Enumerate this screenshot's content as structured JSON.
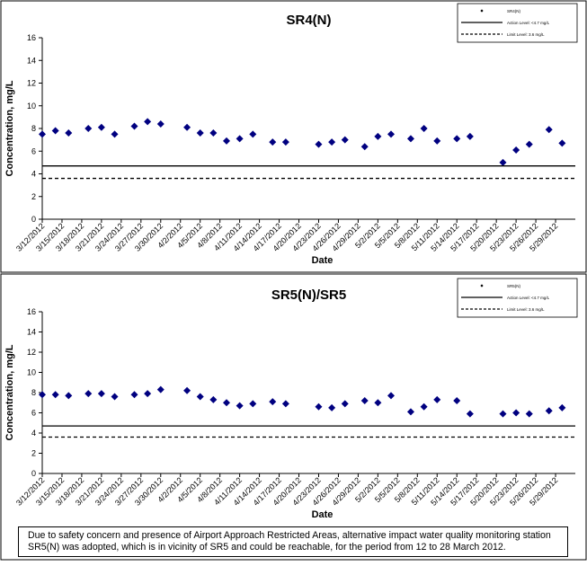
{
  "chart_data": [
    {
      "type": "scatter",
      "title": "SR4(N)",
      "xlabel": "Date",
      "ylabel": "Concentration, mg/L",
      "ylim": [
        0,
        16
      ],
      "yticks": [
        "0",
        "2",
        "4",
        "6",
        "8",
        "10",
        "12",
        "14",
        "16"
      ],
      "xticks": [
        "3/12/2012",
        "3/15/2012",
        "3/18/2012",
        "3/21/2012",
        "3/24/2012",
        "3/27/2012",
        "3/30/2012",
        "4/2/2012",
        "4/5/2012",
        "4/8/2012",
        "4/11/2012",
        "4/14/2012",
        "4/17/2012",
        "4/20/2012",
        "4/23/2012",
        "4/26/2012",
        "4/29/2012",
        "5/2/2012",
        "5/5/2012",
        "5/8/2012",
        "5/11/2012",
        "5/14/2012",
        "5/17/2012",
        "5/20/2012",
        "5/23/2012",
        "5/26/2012",
        "5/29/2012"
      ],
      "grid": false,
      "legend_position": "top-right",
      "series": [
        {
          "name": "SR4(N)",
          "marker": "diamond",
          "color": "#000080",
          "points": [
            {
              "x": "3/12/2012",
              "y": 7.5
            },
            {
              "x": "3/14/2012",
              "y": 7.8
            },
            {
              "x": "3/16/2012",
              "y": 7.6
            },
            {
              "x": "3/19/2012",
              "y": 8.0
            },
            {
              "x": "3/21/2012",
              "y": 8.1
            },
            {
              "x": "3/23/2012",
              "y": 7.5
            },
            {
              "x": "3/26/2012",
              "y": 8.2
            },
            {
              "x": "3/28/2012",
              "y": 8.6
            },
            {
              "x": "3/30/2012",
              "y": 8.4
            },
            {
              "x": "4/3/2012",
              "y": 8.1
            },
            {
              "x": "4/5/2012",
              "y": 7.6
            },
            {
              "x": "4/7/2012",
              "y": 7.6
            },
            {
              "x": "4/9/2012",
              "y": 6.9
            },
            {
              "x": "4/11/2012",
              "y": 7.1
            },
            {
              "x": "4/13/2012",
              "y": 7.5
            },
            {
              "x": "4/16/2012",
              "y": 6.8
            },
            {
              "x": "4/18/2012",
              "y": 6.8
            },
            {
              "x": "4/23/2012",
              "y": 6.6
            },
            {
              "x": "4/25/2012",
              "y": 6.8
            },
            {
              "x": "4/27/2012",
              "y": 7.0
            },
            {
              "x": "4/30/2012",
              "y": 6.4
            },
            {
              "x": "5/2/2012",
              "y": 7.3
            },
            {
              "x": "5/4/2012",
              "y": 7.5
            },
            {
              "x": "5/7/2012",
              "y": 7.1
            },
            {
              "x": "5/9/2012",
              "y": 8.0
            },
            {
              "x": "5/11/2012",
              "y": 6.9
            },
            {
              "x": "5/14/2012",
              "y": 7.1
            },
            {
              "x": "5/16/2012",
              "y": 7.3
            },
            {
              "x": "5/21/2012",
              "y": 5.0
            },
            {
              "x": "5/23/2012",
              "y": 6.1
            },
            {
              "x": "5/25/2012",
              "y": 6.6
            },
            {
              "x": "5/28/2012",
              "y": 7.9
            },
            {
              "x": "5/30/2012",
              "y": 6.7
            }
          ]
        },
        {
          "name": "Action Level: <4.7 mg/L",
          "type": "hline",
          "y": 4.7,
          "style": "solid"
        },
        {
          "name": "Limit Level: 3.6 mg/L",
          "type": "hline",
          "y": 3.6,
          "style": "dashed"
        }
      ]
    },
    {
      "type": "scatter",
      "title": "SR5(N)/SR5",
      "xlabel": "Date",
      "ylabel": "Concentration, mg/L",
      "ylim": [
        0,
        16
      ],
      "yticks": [
        "0",
        "2",
        "4",
        "6",
        "8",
        "10",
        "12",
        "14",
        "16"
      ],
      "xticks": [
        "3/12/2012",
        "3/15/2012",
        "3/18/2012",
        "3/21/2012",
        "3/24/2012",
        "3/27/2012",
        "3/30/2012",
        "4/2/2012",
        "4/5/2012",
        "4/8/2012",
        "4/11/2012",
        "4/14/2012",
        "4/17/2012",
        "4/20/2012",
        "4/23/2012",
        "4/26/2012",
        "4/29/2012",
        "5/2/2012",
        "5/5/2012",
        "5/8/2012",
        "5/11/2012",
        "5/14/2012",
        "5/17/2012",
        "5/20/2012",
        "5/23/2012",
        "5/26/2012",
        "5/29/2012"
      ],
      "grid": false,
      "legend_position": "top-right",
      "series": [
        {
          "name": "SR5(N)",
          "marker": "diamond",
          "color": "#000080",
          "points": [
            {
              "x": "3/12/2012",
              "y": 7.8
            },
            {
              "x": "3/14/2012",
              "y": 7.8
            },
            {
              "x": "3/16/2012",
              "y": 7.7
            },
            {
              "x": "3/19/2012",
              "y": 7.9
            },
            {
              "x": "3/21/2012",
              "y": 7.9
            },
            {
              "x": "3/23/2012",
              "y": 7.6
            },
            {
              "x": "3/26/2012",
              "y": 7.8
            },
            {
              "x": "3/28/2012",
              "y": 7.9
            },
            {
              "x": "3/30/2012",
              "y": 8.3
            },
            {
              "x": "4/3/2012",
              "y": 8.2
            },
            {
              "x": "4/5/2012",
              "y": 7.6
            },
            {
              "x": "4/7/2012",
              "y": 7.3
            },
            {
              "x": "4/9/2012",
              "y": 7.0
            },
            {
              "x": "4/11/2012",
              "y": 6.7
            },
            {
              "x": "4/13/2012",
              "y": 6.9
            },
            {
              "x": "4/16/2012",
              "y": 7.1
            },
            {
              "x": "4/18/2012",
              "y": 6.9
            },
            {
              "x": "4/23/2012",
              "y": 6.6
            },
            {
              "x": "4/25/2012",
              "y": 6.5
            },
            {
              "x": "4/27/2012",
              "y": 6.9
            },
            {
              "x": "4/30/2012",
              "y": 7.2
            },
            {
              "x": "5/2/2012",
              "y": 7.0
            },
            {
              "x": "5/4/2012",
              "y": 7.7
            },
            {
              "x": "5/7/2012",
              "y": 6.1
            },
            {
              "x": "5/9/2012",
              "y": 6.6
            },
            {
              "x": "5/11/2012",
              "y": 7.3
            },
            {
              "x": "5/14/2012",
              "y": 7.2
            },
            {
              "x": "5/16/2012",
              "y": 5.9
            },
            {
              "x": "5/21/2012",
              "y": 5.9
            },
            {
              "x": "5/23/2012",
              "y": 6.0
            },
            {
              "x": "5/25/2012",
              "y": 5.9
            },
            {
              "x": "5/28/2012",
              "y": 6.2
            },
            {
              "x": "5/30/2012",
              "y": 6.5
            }
          ]
        },
        {
          "name": "Action Level: <4.7 mg/L",
          "type": "hline",
          "y": 4.7,
          "style": "solid"
        },
        {
          "name": "Limit Level: 3.6 mg/L",
          "type": "hline",
          "y": 3.6,
          "style": "dashed"
        }
      ]
    }
  ],
  "note": "Due to safety concern and presence of Airport Approach Restricted Areas, alternative impact water quality monitoring station SR5(N) was adopted, which is in vicinity of SR5 and could be reachable, for the period from 12 to 28 March 2012."
}
